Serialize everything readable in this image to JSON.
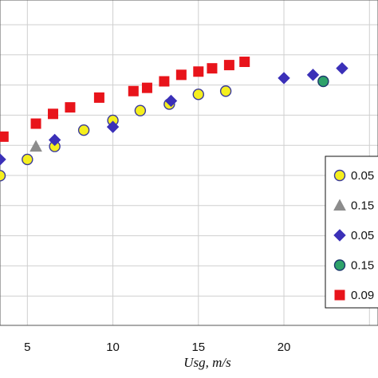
{
  "chart_data": {
    "type": "scatter",
    "xlabel": "Usg, m/s",
    "xlim": [
      3.4,
      25.5
    ],
    "ylim": [
      0,
      10
    ],
    "x_ticks": [
      5,
      10,
      15,
      20
    ],
    "x_tick_labels": [
      "5",
      "10",
      "15",
      "20"
    ],
    "grid": true,
    "legend_position": "right",
    "legend_labels_visible": [
      "0.05",
      "0.15",
      "0.05",
      "0.15",
      "0.09"
    ],
    "series": [
      {
        "marker": "circle",
        "fill": "#f5ef1e",
        "stroke": "#3a3a9a",
        "points": [
          [
            3.4,
            4.6
          ],
          [
            5.0,
            5.1
          ],
          [
            6.6,
            5.5
          ],
          [
            8.3,
            6.0
          ],
          [
            10.0,
            6.3
          ],
          [
            11.6,
            6.6
          ],
          [
            13.3,
            6.8
          ],
          [
            15.0,
            7.1
          ],
          [
            16.6,
            7.2
          ]
        ]
      },
      {
        "marker": "triangle",
        "fill": "#8c8c8c",
        "stroke": "#8c8c8c",
        "points": [
          [
            5.5,
            5.5
          ]
        ]
      },
      {
        "marker": "diamond",
        "fill": "#3b30b8",
        "stroke": "#3b30b8",
        "points": [
          [
            3.4,
            5.1
          ],
          [
            6.6,
            5.7
          ],
          [
            10.0,
            6.1
          ],
          [
            13.4,
            6.9
          ],
          [
            20.0,
            7.6
          ],
          [
            21.7,
            7.7
          ],
          [
            23.4,
            7.9
          ]
        ]
      },
      {
        "marker": "circle",
        "fill": "#2ea26a",
        "stroke": "#1e3a6e",
        "points": [
          [
            22.3,
            7.5
          ]
        ]
      },
      {
        "marker": "square",
        "fill": "#e8141b",
        "stroke": "#e8141b",
        "points": [
          [
            3.6,
            5.8
          ],
          [
            5.5,
            6.2
          ],
          [
            6.5,
            6.5
          ],
          [
            7.5,
            6.7
          ],
          [
            9.2,
            7.0
          ],
          [
            11.2,
            7.2
          ],
          [
            12.0,
            7.3
          ],
          [
            13.0,
            7.5
          ],
          [
            14.0,
            7.7
          ],
          [
            15.0,
            7.8
          ],
          [
            15.8,
            7.9
          ],
          [
            16.8,
            8.0
          ],
          [
            17.7,
            8.1
          ]
        ]
      }
    ]
  }
}
